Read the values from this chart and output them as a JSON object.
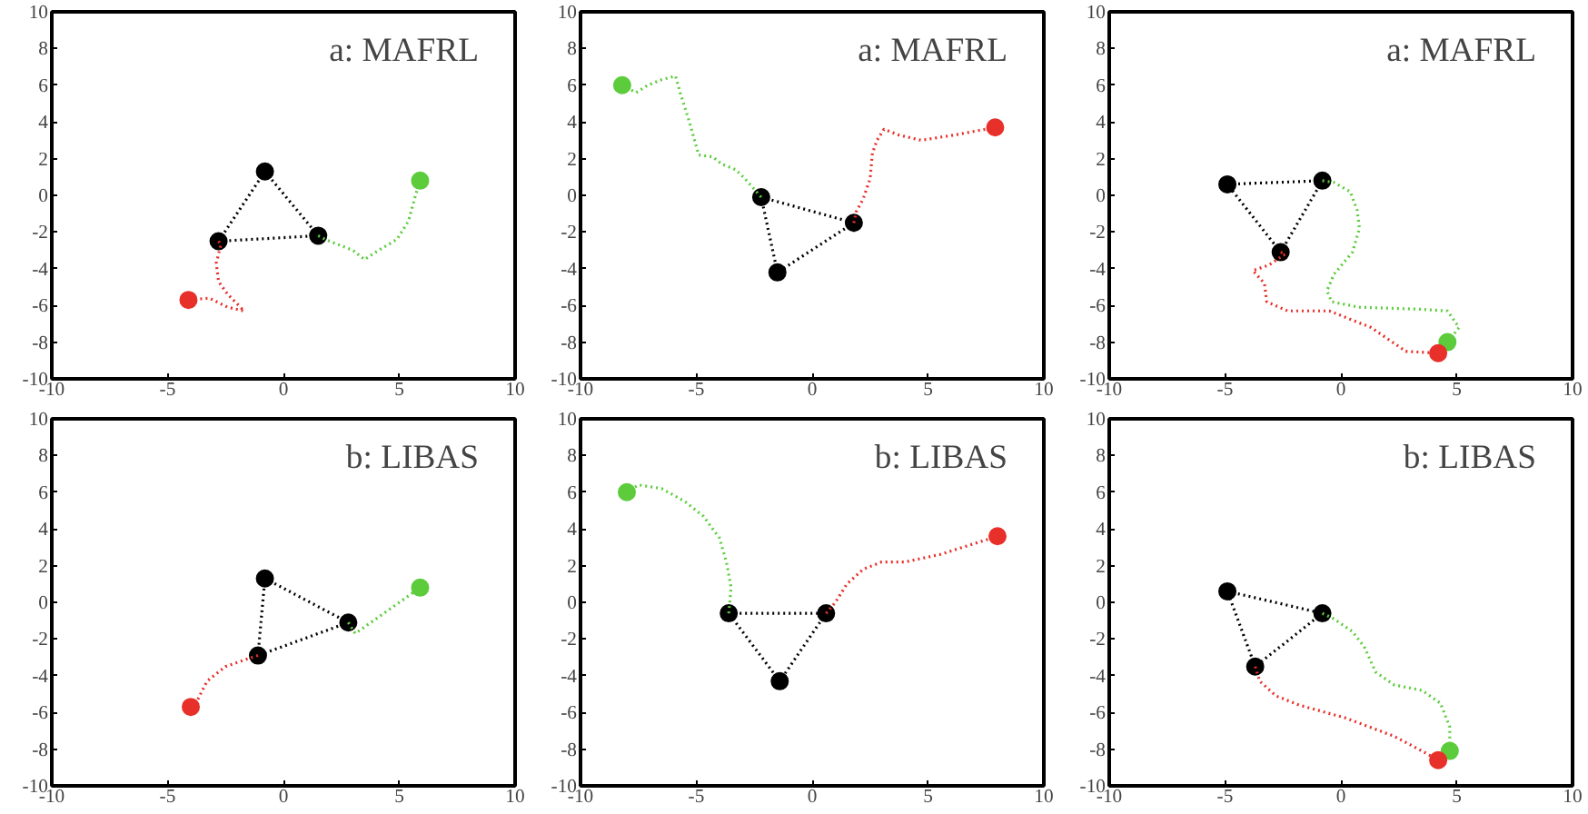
{
  "chart_data": [
    {
      "type": "line",
      "annotations": [
        "a: MAFRL"
      ],
      "xlim": [
        -10,
        10
      ],
      "ylim": [
        -10,
        10
      ],
      "xticks": [
        -10,
        -5,
        0,
        5,
        10
      ],
      "yticks": [
        -10,
        -8,
        -6,
        -4,
        -2,
        0,
        2,
        4,
        6,
        8,
        10
      ],
      "grid": false,
      "series": [
        {
          "color": "#000000",
          "line_style": "dotted",
          "x": [
            -0.8,
            1.5
          ],
          "values": [
            1.3,
            -2.2
          ]
        },
        {
          "color": "#000000",
          "line_style": "dotted",
          "x": [
            1.5,
            -2.8
          ],
          "values": [
            -2.2,
            -2.5
          ]
        },
        {
          "color": "#000000",
          "line_style": "dotted",
          "x": [
            -2.8,
            -0.8
          ],
          "values": [
            -2.5,
            1.3
          ]
        },
        {
          "type": "scatter",
          "color": "#000000",
          "marker": "circle",
          "x": [
            -0.8,
            1.5,
            -2.8
          ],
          "values": [
            1.3,
            -2.2,
            -2.5
          ]
        },
        {
          "color": "#5ccc3c",
          "line_style": "dotted",
          "x": [
            1.5,
            1.8,
            3.0,
            3.5,
            4.1,
            4.9,
            5.4,
            5.7,
            5.9
          ],
          "values": [
            -2.2,
            -2.4,
            -3.0,
            -3.5,
            -3.0,
            -2.4,
            -1.4,
            0.0,
            0.8
          ]
        },
        {
          "color": "#e8302a",
          "line_style": "dotted",
          "x": [
            -2.8,
            -2.7,
            -2.9,
            -2.8,
            -2.4,
            -1.7,
            -2.4,
            -3.2,
            -4.1
          ],
          "values": [
            -2.5,
            -2.7,
            -3.7,
            -4.7,
            -5.4,
            -6.3,
            -6.1,
            -5.6,
            -5.7
          ]
        },
        {
          "type": "scatter",
          "color": "#5ccc3c",
          "marker": "circle",
          "x": [
            5.9
          ],
          "values": [
            0.8
          ]
        },
        {
          "type": "scatter",
          "color": "#e8302a",
          "marker": "circle",
          "x": [
            -4.1
          ],
          "values": [
            -5.7
          ]
        }
      ]
    },
    {
      "type": "line",
      "annotations": [
        "a: MAFRL"
      ],
      "xlim": [
        -10,
        10
      ],
      "ylim": [
        -10,
        10
      ],
      "xticks": [
        -10,
        -5,
        0,
        5,
        10
      ],
      "yticks": [
        -10,
        -8,
        -6,
        -4,
        -2,
        0,
        2,
        4,
        6,
        8,
        10
      ],
      "grid": false,
      "series": [
        {
          "color": "#000000",
          "line_style": "dotted",
          "x": [
            -2.2,
            1.8
          ],
          "values": [
            -0.1,
            -1.5
          ]
        },
        {
          "color": "#000000",
          "line_style": "dotted",
          "x": [
            1.8,
            -1.5
          ],
          "values": [
            -1.5,
            -4.2
          ]
        },
        {
          "color": "#000000",
          "line_style": "dotted",
          "x": [
            -1.5,
            -2.2
          ],
          "values": [
            -4.2,
            -0.1
          ]
        },
        {
          "type": "scatter",
          "color": "#000000",
          "marker": "circle",
          "x": [
            -2.2,
            1.8,
            -1.5
          ],
          "values": [
            -0.1,
            -1.5,
            -4.2
          ]
        },
        {
          "color": "#5ccc3c",
          "line_style": "dotted",
          "x": [
            -2.2,
            -2.9,
            -3.3,
            -3.9,
            -4.3,
            -4.9,
            -5.3,
            -5.7,
            -5.9,
            -6.5,
            -7.1,
            -7.6,
            -8.2
          ],
          "values": [
            -0.1,
            0.9,
            1.4,
            1.7,
            2.1,
            2.2,
            4.0,
            5.6,
            6.5,
            6.3,
            6.0,
            5.6,
            6.0
          ]
        },
        {
          "color": "#e8302a",
          "line_style": "dotted",
          "x": [
            1.8,
            1.9,
            2.2,
            2.5,
            2.6,
            2.8,
            3.1,
            3.7,
            4.7,
            6.2,
            7.9
          ],
          "values": [
            -1.5,
            -0.9,
            -0.2,
            0.9,
            2.3,
            3.0,
            3.6,
            3.3,
            3.0,
            3.3,
            3.7
          ]
        },
        {
          "type": "scatter",
          "color": "#5ccc3c",
          "marker": "circle",
          "x": [
            -8.2
          ],
          "values": [
            6.0
          ]
        },
        {
          "type": "scatter",
          "color": "#e8302a",
          "marker": "circle",
          "x": [
            7.9
          ],
          "values": [
            3.7
          ]
        }
      ]
    },
    {
      "type": "line",
      "annotations": [
        "a: MAFRL"
      ],
      "xlim": [
        -10,
        10
      ],
      "ylim": [
        -10,
        10
      ],
      "xticks": [
        -10,
        -5,
        0,
        5,
        10
      ],
      "yticks": [
        -10,
        -8,
        -6,
        -4,
        -2,
        0,
        2,
        4,
        6,
        8,
        10
      ],
      "grid": false,
      "series": [
        {
          "color": "#000000",
          "line_style": "dotted",
          "x": [
            -4.9,
            -0.8
          ],
          "values": [
            0.6,
            0.8
          ]
        },
        {
          "color": "#000000",
          "line_style": "dotted",
          "x": [
            -0.8,
            -2.6
          ],
          "values": [
            0.8,
            -3.1
          ]
        },
        {
          "color": "#000000",
          "line_style": "dotted",
          "x": [
            -2.6,
            -4.9
          ],
          "values": [
            -3.1,
            0.6
          ]
        },
        {
          "type": "scatter",
          "color": "#000000",
          "marker": "circle",
          "x": [
            -4.9,
            -0.8,
            -2.6
          ],
          "values": [
            0.6,
            0.8,
            -3.1
          ]
        },
        {
          "color": "#5ccc3c",
          "line_style": "dotted",
          "x": [
            -0.8,
            -0.3,
            0.4,
            0.7,
            0.8,
            0.5,
            -0.3,
            -0.6,
            -0.4,
            0.8,
            3.3,
            4.6,
            5.1,
            4.6
          ],
          "values": [
            0.8,
            0.7,
            0.2,
            -0.8,
            -1.8,
            -3.1,
            -4.3,
            -5.2,
            -5.8,
            -6.1,
            -6.2,
            -6.3,
            -7.2,
            -8.0
          ]
        },
        {
          "color": "#e8302a",
          "line_style": "dotted",
          "x": [
            -2.6,
            -2.4,
            -3.1,
            -3.8,
            -3.3,
            -3.2,
            -2.3,
            -0.5,
            1.3,
            2.8,
            4.2
          ],
          "values": [
            -3.1,
            -3.2,
            -3.8,
            -4.1,
            -4.8,
            -5.8,
            -6.3,
            -6.3,
            -7.2,
            -8.5,
            -8.6
          ]
        },
        {
          "type": "scatter",
          "color": "#5ccc3c",
          "marker": "circle",
          "x": [
            4.6
          ],
          "values": [
            -8.0
          ]
        },
        {
          "type": "scatter",
          "color": "#e8302a",
          "marker": "circle",
          "x": [
            4.2
          ],
          "values": [
            -8.6
          ]
        }
      ]
    },
    {
      "type": "line",
      "annotations": [
        "b: LIBAS"
      ],
      "xlim": [
        -10,
        10
      ],
      "ylim": [
        -10,
        10
      ],
      "xticks": [
        -10,
        -5,
        0,
        5,
        10
      ],
      "yticks": [
        -10,
        -8,
        -6,
        -4,
        -2,
        0,
        2,
        4,
        6,
        8,
        10
      ],
      "grid": false,
      "series": [
        {
          "color": "#000000",
          "line_style": "dotted",
          "x": [
            -0.8,
            2.8
          ],
          "values": [
            1.3,
            -1.1
          ]
        },
        {
          "color": "#000000",
          "line_style": "dotted",
          "x": [
            2.8,
            -1.1
          ],
          "values": [
            -1.1,
            -2.9
          ]
        },
        {
          "color": "#000000",
          "line_style": "dotted",
          "x": [
            -1.1,
            -0.8
          ],
          "values": [
            -2.9,
            1.3
          ]
        },
        {
          "type": "scatter",
          "color": "#000000",
          "marker": "circle",
          "x": [
            -0.8,
            2.8,
            -1.1
          ],
          "values": [
            1.3,
            -1.1,
            -2.9
          ]
        },
        {
          "color": "#5ccc3c",
          "line_style": "dotted",
          "x": [
            2.8,
            3.1,
            5.9
          ],
          "values": [
            -1.1,
            -1.7,
            0.8
          ]
        },
        {
          "color": "#e8302a",
          "line_style": "dotted",
          "x": [
            -1.1,
            -1.6,
            -2.5,
            -3.3,
            -3.7,
            -4.0
          ],
          "values": [
            -2.9,
            -3.1,
            -3.5,
            -4.3,
            -5.3,
            -5.7
          ]
        },
        {
          "type": "scatter",
          "color": "#5ccc3c",
          "marker": "circle",
          "x": [
            5.9
          ],
          "values": [
            0.8
          ]
        },
        {
          "type": "scatter",
          "color": "#e8302a",
          "marker": "circle",
          "x": [
            -4.0
          ],
          "values": [
            -5.7
          ]
        }
      ]
    },
    {
      "type": "line",
      "annotations": [
        "b: LIBAS"
      ],
      "xlim": [
        -10,
        10
      ],
      "ylim": [
        -10,
        10
      ],
      "xticks": [
        -10,
        -5,
        0,
        5,
        10
      ],
      "yticks": [
        -10,
        -8,
        -6,
        -4,
        -2,
        0,
        2,
        4,
        6,
        8,
        10
      ],
      "grid": false,
      "series": [
        {
          "color": "#000000",
          "line_style": "dotted",
          "x": [
            -3.6,
            0.6
          ],
          "values": [
            -0.6,
            -0.6
          ]
        },
        {
          "color": "#000000",
          "line_style": "dotted",
          "x": [
            0.6,
            -1.4
          ],
          "values": [
            -0.6,
            -4.3
          ]
        },
        {
          "color": "#000000",
          "line_style": "dotted",
          "x": [
            -1.4,
            -3.6
          ],
          "values": [
            -4.3,
            -0.6
          ]
        },
        {
          "type": "scatter",
          "color": "#000000",
          "marker": "circle",
          "x": [
            -3.6,
            0.6,
            -1.4
          ],
          "values": [
            -0.6,
            -0.6,
            -4.3
          ]
        },
        {
          "color": "#5ccc3c",
          "line_style": "dotted",
          "x": [
            -3.6,
            -3.5,
            -3.7,
            -4.0,
            -4.7,
            -5.5,
            -6.5,
            -7.5,
            -8.0
          ],
          "values": [
            -0.6,
            0.8,
            2.2,
            3.5,
            4.7,
            5.5,
            6.2,
            6.4,
            6.0
          ]
        },
        {
          "color": "#e8302a",
          "line_style": "dotted",
          "x": [
            0.6,
            1.0,
            1.5,
            2.2,
            3.0,
            4.0,
            5.5,
            7.0,
            8.0
          ],
          "values": [
            -0.6,
            0.0,
            1.0,
            1.8,
            2.2,
            2.2,
            2.6,
            3.2,
            3.6
          ]
        },
        {
          "type": "scatter",
          "color": "#5ccc3c",
          "marker": "circle",
          "x": [
            -8.0
          ],
          "values": [
            6.0
          ]
        },
        {
          "type": "scatter",
          "color": "#e8302a",
          "marker": "circle",
          "x": [
            8.0
          ],
          "values": [
            3.6
          ]
        }
      ]
    },
    {
      "type": "line",
      "annotations": [
        "b: LIBAS"
      ],
      "xlim": [
        -10,
        10
      ],
      "ylim": [
        -10,
        10
      ],
      "xticks": [
        -10,
        -5,
        0,
        5,
        10
      ],
      "yticks": [
        -10,
        -8,
        -6,
        -4,
        -2,
        0,
        2,
        4,
        6,
        8,
        10
      ],
      "grid": false,
      "series": [
        {
          "color": "#000000",
          "line_style": "dotted",
          "x": [
            -4.9,
            -0.8
          ],
          "values": [
            0.6,
            -0.6
          ]
        },
        {
          "color": "#000000",
          "line_style": "dotted",
          "x": [
            -0.8,
            -3.7
          ],
          "values": [
            -0.6,
            -3.5
          ]
        },
        {
          "color": "#000000",
          "line_style": "dotted",
          "x": [
            -3.7,
            -4.9
          ],
          "values": [
            -3.5,
            0.6
          ]
        },
        {
          "type": "scatter",
          "color": "#000000",
          "marker": "circle",
          "x": [
            -4.9,
            -0.8,
            -3.7
          ],
          "values": [
            0.6,
            -0.6,
            -3.5
          ]
        },
        {
          "color": "#5ccc3c",
          "line_style": "dotted",
          "x": [
            -0.8,
            -0.3,
            0.5,
            1.0,
            1.5,
            2.3,
            3.5,
            4.3,
            4.7,
            4.7
          ],
          "values": [
            -0.6,
            -0.9,
            -1.6,
            -2.4,
            -3.8,
            -4.5,
            -4.8,
            -5.5,
            -6.8,
            -8.1
          ]
        },
        {
          "color": "#e8302a",
          "line_style": "dotted",
          "x": [
            -3.7,
            -3.5,
            -2.8,
            -1.8,
            0.2,
            2.3,
            3.5,
            4.2
          ],
          "values": [
            -3.5,
            -4.3,
            -5.1,
            -5.6,
            -6.3,
            -7.3,
            -8.1,
            -8.6
          ]
        },
        {
          "type": "scatter",
          "color": "#5ccc3c",
          "marker": "circle",
          "x": [
            4.7
          ],
          "values": [
            -8.1
          ]
        },
        {
          "type": "scatter",
          "color": "#e8302a",
          "marker": "circle",
          "x": [
            4.2
          ],
          "values": [
            -8.6
          ]
        }
      ]
    }
  ]
}
